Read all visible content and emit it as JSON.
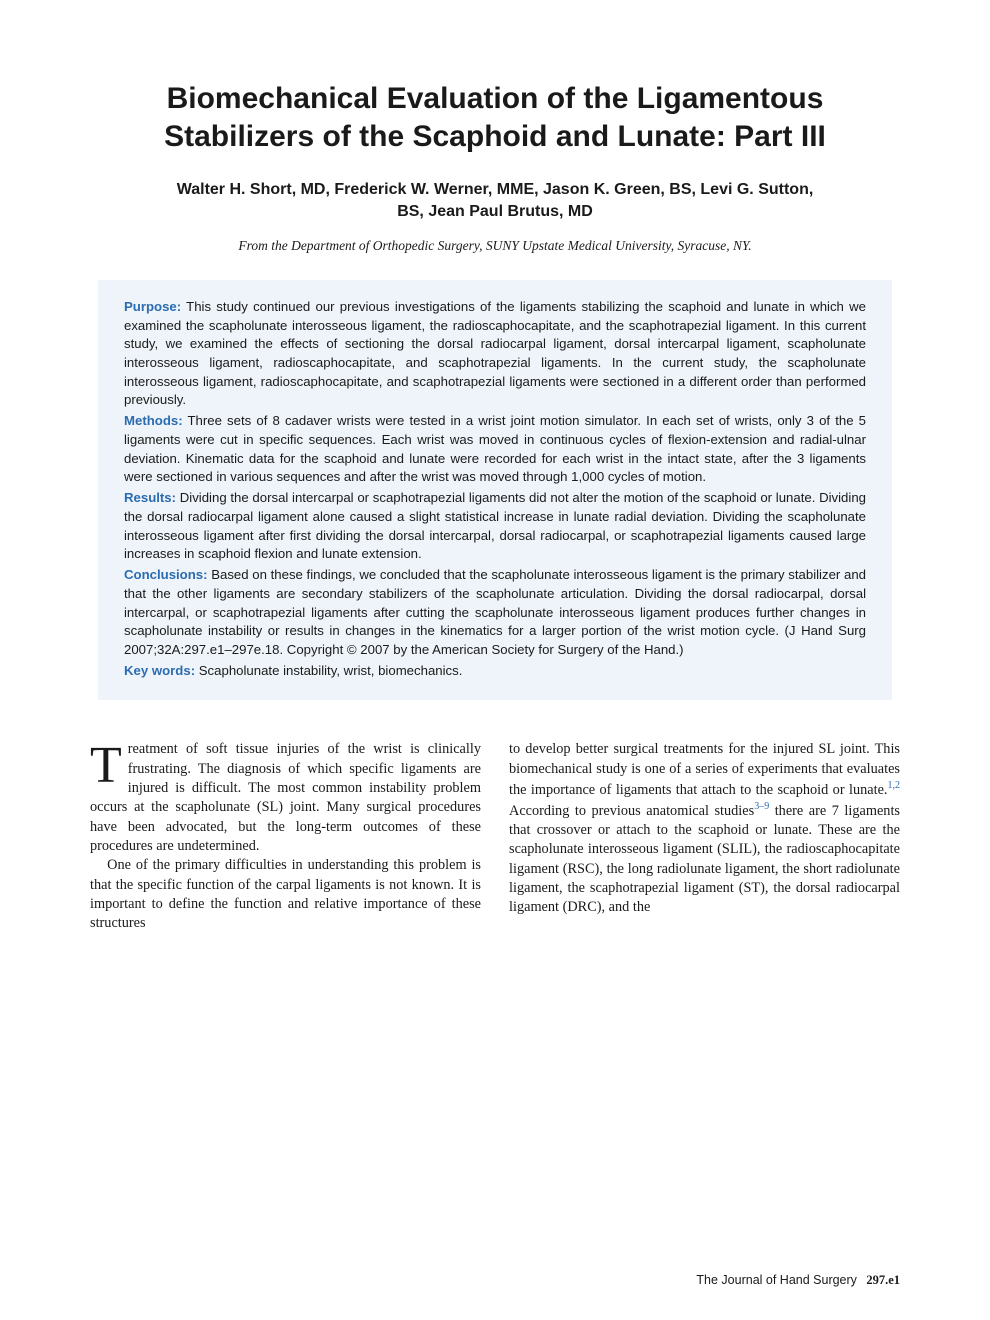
{
  "title": "Biomechanical Evaluation of the Ligamentous Stabilizers of the Scaphoid and Lunate: Part III",
  "authors": "Walter H. Short, MD, Frederick W. Werner, MME, Jason K. Green, BS, Levi G. Sutton, BS, Jean Paul Brutus, MD",
  "affiliation": "From the Department of Orthopedic Surgery, SUNY Upstate Medical University, Syracuse, NY.",
  "abstract": {
    "purpose_label": "Purpose:",
    "purpose_text": " This study continued our previous investigations of the ligaments stabilizing the scaphoid and lunate in which we examined the scapholunate interosseous ligament, the radioscaphocapitate, and the scaphotrapezial ligament. In this current study, we examined the effects of sectioning the dorsal radiocarpal ligament, dorsal intercarpal ligament, scapholunate interosseous ligament, radioscaphocapitate, and scaphotrapezial ligaments. In the current study, the scapholunate interosseous ligament, radioscaphocapitate, and scaphotrapezial ligaments were sectioned in a different order than performed previously.",
    "methods_label": "Methods:",
    "methods_text": " Three sets of 8 cadaver wrists were tested in a wrist joint motion simulator. In each set of wrists, only 3 of the 5 ligaments were cut in specific sequences. Each wrist was moved in continuous cycles of flexion-extension and radial-ulnar deviation. Kinematic data for the scaphoid and lunate were recorded for each wrist in the intact state, after the 3 ligaments were sectioned in various sequences and after the wrist was moved through 1,000 cycles of motion.",
    "results_label": "Results:",
    "results_text": " Dividing the dorsal intercarpal or scaphotrapezial ligaments did not alter the motion of the scaphoid or lunate. Dividing the dorsal radiocarpal ligament alone caused a slight statistical increase in lunate radial deviation. Dividing the scapholunate interosseous ligament after first dividing the dorsal intercarpal, dorsal radiocarpal, or scaphotrapezial ligaments caused large increases in scaphoid flexion and lunate extension.",
    "conclusions_label": "Conclusions:",
    "conclusions_text": " Based on these findings, we concluded that the scapholunate interosseous ligament is the primary stabilizer and that the other ligaments are secondary stabilizers of the scapholunate articulation. Dividing the dorsal radiocarpal, dorsal intercarpal, or scaphotrapezial ligaments after cutting the scapholunate interosseous ligament produces further changes in scapholunate instability or results in changes in the kinematics for a larger portion of the wrist motion cycle. (J Hand Surg 2007;32A:297.e1–297e.18. Copyright © 2007 by the American Society for Surgery of the Hand.)",
    "keywords_label": "Key words:",
    "keywords_text": " Scapholunate instability, wrist, biomechanics."
  },
  "body": {
    "dropcap": "T",
    "col1_p1": "reatment of soft tissue injuries of the wrist is clinically frustrating. The diagnosis of which specific ligaments are injured is difficult. The most common instability problem occurs at the scapholunate (SL) joint. Many surgical procedures have been advocated, but the long-term outcomes of these procedures are undetermined.",
    "col1_p2": "One of the primary difficulties in understanding this problem is that the specific function of the carpal ligaments is not known. It is important to define the function and relative importance of these structures",
    "col2_p1a": "to develop better surgical treatments for the injured SL joint. This biomechanical study is one of a series of experiments that evaluates the importance of ligaments that attach to the scaphoid or lunate.",
    "ref1": "1,2",
    "col2_p1b": " According to previous anatomical studies",
    "ref2": "3–9",
    "col2_p1c": " there are 7 ligaments that crossover or attach to the scaphoid or lunate. These are the scapholunate interosseous ligament (SLIL), the radioscaphocapitate ligament (RSC), the long radiolunate ligament, the short radiolunate ligament, the scaphotrapezial ligament (ST), the dorsal radiocarpal ligament (DRC), and the"
  },
  "footer": {
    "journal": "The Journal of Hand Surgery",
    "page": "297.e1"
  },
  "style": {
    "accent_color": "#2b6cb0",
    "abstract_bg": "#eef4fa",
    "page_bg": "#ffffff",
    "title_fontsize": 30,
    "authors_fontsize": 16,
    "abstract_fontsize": 13.2,
    "body_fontsize": 14.3,
    "dropcap_fontsize": 52
  }
}
